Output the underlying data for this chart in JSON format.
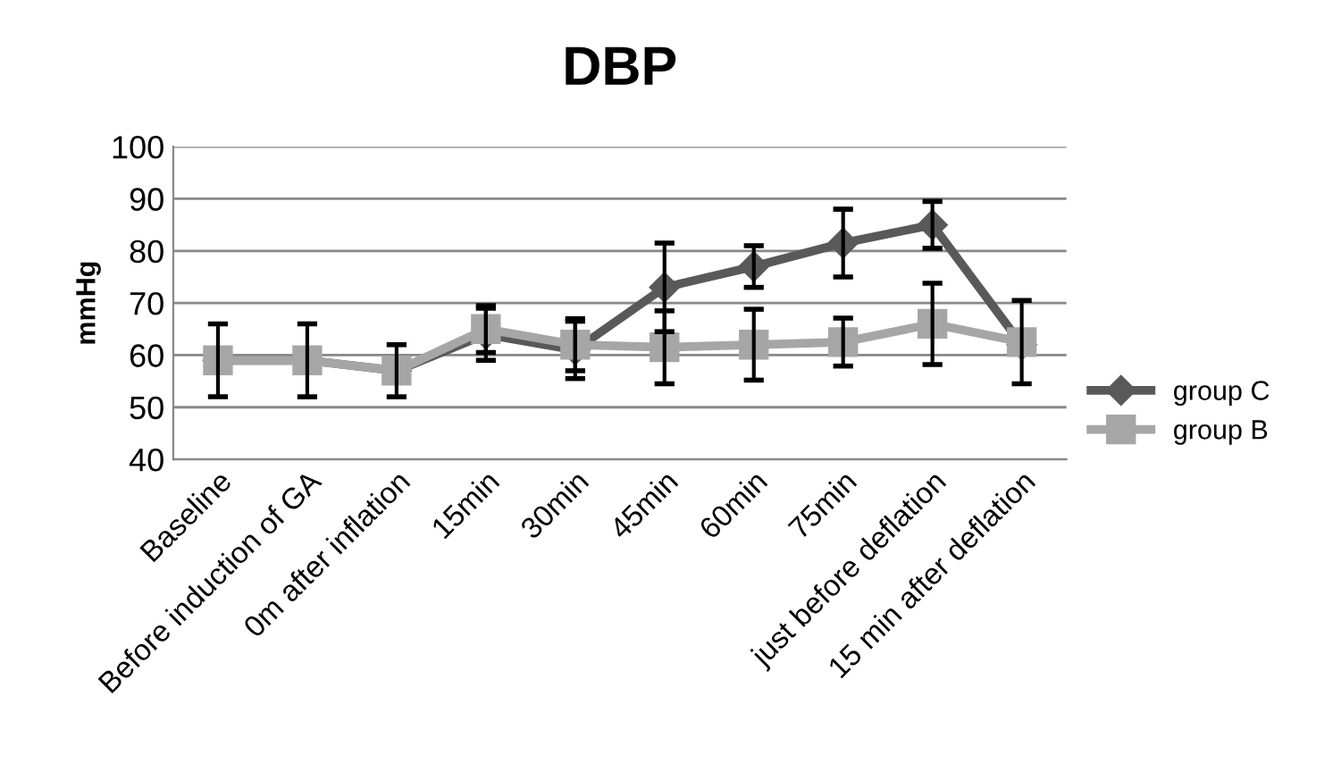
{
  "chart_data": {
    "type": "line",
    "title": "DBP",
    "ylabel": "mmHg",
    "categories": [
      "Baseline",
      "Before induction of GA",
      "0m after inflation",
      "15min",
      "30min",
      "45min",
      "60min",
      "75min",
      "just before deflation",
      "15 min after deflation"
    ],
    "series": [
      {
        "name": "group C",
        "color": "#595959",
        "marker": "diamond",
        "values": [
          59,
          59,
          57,
          64,
          61,
          73,
          77,
          81.5,
          85,
          62
        ],
        "errors": [
          7,
          7,
          5,
          5,
          5.5,
          8.5,
          4,
          6.5,
          4.5,
          null
        ]
      },
      {
        "name": "group B",
        "color": "#a6a6a6",
        "marker": "square",
        "values": [
          59,
          59,
          57,
          65,
          62,
          61.5,
          62,
          62.5,
          66,
          62.5
        ],
        "errors": [
          null,
          null,
          null,
          4.5,
          5,
          7,
          6.8,
          4.6,
          7.8,
          8
        ]
      }
    ],
    "ylim": [
      40,
      100
    ],
    "yticks": [
      40,
      50,
      60,
      70,
      80,
      90,
      100
    ],
    "grid": "y",
    "legend": "right"
  }
}
